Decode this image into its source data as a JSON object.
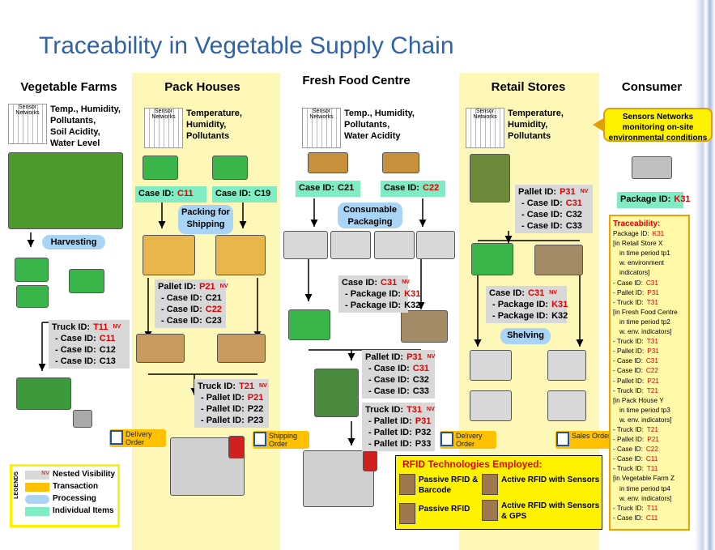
{
  "title": "Traceability in Vegetable Supply Chain",
  "columns": [
    "Vegetable Farms",
    "Pack Houses",
    "Fresh Food Centre",
    "Retail Stores",
    "Consumer"
  ],
  "sensors": [
    {
      "label": "Sensor Networks",
      "lines": [
        "Temp., Humidity,",
        "Pollutants,",
        "Soil Acidity,",
        "Water Level"
      ]
    },
    {
      "label": "Sensor Networks",
      "lines": [
        "Temperature,",
        "Humidity,",
        "Pollutants"
      ]
    },
    {
      "label": "Sensor Networks",
      "lines": [
        "Temp., Humidity,",
        "Pollutants,",
        "Water Acidity"
      ]
    },
    {
      "label": "Sensor Networks",
      "lines": [
        "Temperature,",
        "Humidity,",
        "Pollutants"
      ]
    }
  ],
  "case_tags": [
    {
      "label": "Case ID:",
      "id": "C11",
      "highlight": true
    },
    {
      "label": "Case ID:",
      "id": "C19",
      "highlight": false
    },
    {
      "label": "Case ID:",
      "id": "C21",
      "highlight": false
    },
    {
      "label": "Case ID:",
      "id": "C22",
      "highlight": true
    },
    {
      "label": "Package ID:",
      "id": "K31",
      "highlight": true
    }
  ],
  "processes": [
    "Harvesting",
    "Packing for Shipping",
    "Consumable Packaging",
    "Shelving"
  ],
  "manifests": [
    {
      "label": "Truck ID:",
      "id": "T11",
      "tag": "NV",
      "items": [
        {
          "label": "- Case ID:",
          "id": "C11",
          "highlight": true
        },
        {
          "label": "- Case ID:",
          "id": "C12",
          "highlight": false
        },
        {
          "label": "- Case ID:",
          "id": "C13",
          "highlight": false
        }
      ]
    },
    {
      "label": "Pallet ID:",
      "id": "P21",
      "tag": "NV",
      "items": [
        {
          "label": "- Case ID:",
          "id": "C21",
          "highlight": false
        },
        {
          "label": "- Case ID:",
          "id": "C22",
          "highlight": true
        },
        {
          "label": "- Case ID:",
          "id": "C23",
          "highlight": false
        }
      ]
    },
    {
      "label": "Truck ID:",
      "id": "T21",
      "tag": "NV",
      "items": [
        {
          "label": "- Pallet ID:",
          "id": "P21",
          "highlight": true
        },
        {
          "label": "- Pallet ID:",
          "id": "P22",
          "highlight": false
        },
        {
          "label": "- Pallet ID:",
          "id": "P23",
          "highlight": false
        }
      ]
    },
    {
      "label": "Case ID:",
      "id": "C31",
      "tag": "NV",
      "items": [
        {
          "label": "- Package ID:",
          "id": "K31",
          "highlight": true
        },
        {
          "label": "- Package ID:",
          "id": "K32",
          "highlight": false
        }
      ]
    },
    {
      "label": "Pallet ID:",
      "id": "P31",
      "tag": "NV",
      "items": [
        {
          "label": "- Case ID:",
          "id": "C31",
          "highlight": true
        },
        {
          "label": "- Case ID:",
          "id": "C32",
          "highlight": false
        },
        {
          "label": "- Case ID:",
          "id": "C33",
          "highlight": false
        }
      ]
    },
    {
      "label": "Truck ID:",
      "id": "T31",
      "tag": "NV",
      "items": [
        {
          "label": "- Pallet ID:",
          "id": "P31",
          "highlight": true
        },
        {
          "label": "- Pallet ID:",
          "id": "P32",
          "highlight": false
        },
        {
          "label": "- Pallet ID:",
          "id": "P33",
          "highlight": false
        }
      ]
    },
    {
      "label": "Pallet ID:",
      "id": "P31",
      "tag": "NV",
      "items": [
        {
          "label": "- Case ID:",
          "id": "C31",
          "highlight": true
        },
        {
          "label": "- Case ID:",
          "id": "C32",
          "highlight": false
        },
        {
          "label": "- Case ID:",
          "id": "C33",
          "highlight": false
        }
      ]
    },
    {
      "label": "Case ID:",
      "id": "C31",
      "tag": "NV",
      "items": [
        {
          "label": "- Package ID:",
          "id": "K31",
          "highlight": true
        },
        {
          "label": "- Package ID:",
          "id": "K32",
          "highlight": false
        }
      ]
    }
  ],
  "orders": [
    "Delivery Order",
    "Shipping Order",
    "Delivery Order",
    "Sales Order"
  ],
  "callout": "Sensors Networks monitoring on-site environmental conditions",
  "traceability": {
    "heading": "Traceability:",
    "lines": [
      {
        "label": "Package ID:",
        "id": "K31"
      },
      "[in Retail Store X",
      "in time period tp1",
      "w. environment",
      "indicators]",
      {
        "label": "- Case ID:",
        "id": "C31"
      },
      {
        "label": "- Pallet ID:",
        "id": "P31"
      },
      {
        "label": "- Truck ID:",
        "id": "T31"
      },
      "[in Fresh Food Centre",
      "in time period tp2",
      "w. env. indicators]",
      {
        "label": "- Truck ID:",
        "id": "T31"
      },
      {
        "label": "- Pallet ID:",
        "id": "P31"
      },
      {
        "label": "- Case ID:",
        "id": "C31"
      },
      {
        "label": "- Case ID:",
        "id": "C22"
      },
      {
        "label": "- Pallet ID:",
        "id": "P21"
      },
      {
        "label": "- Truck ID:",
        "id": "T21"
      },
      "[in Pack House Y",
      "in time period tp3",
      "w. env. indicators]",
      {
        "label": "- Truck ID:",
        "id": "T21"
      },
      {
        "label": "- Pallet ID:",
        "id": "P21"
      },
      {
        "label": "- Case ID:",
        "id": "C22"
      },
      {
        "label": "- Case ID:",
        "id": "C11"
      },
      {
        "label": "- Truck ID:",
        "id": "T11"
      },
      "[in Vegetable Farm Z",
      "in time period tp4",
      "w. env. indicators]",
      {
        "label": "- Truck ID:",
        "id": "T11"
      },
      {
        "label": "- Case ID:",
        "id": "C11"
      }
    ]
  },
  "legend": {
    "title": "LEGENDS",
    "symbol": "NV",
    "items": [
      "Nested Visibility",
      "Transaction",
      "Processing",
      "Individual Items"
    ]
  },
  "rfid": {
    "title": "RFID Technologies Employed:",
    "items": [
      "Passive RFID & Barcode",
      "Passive RFID",
      "Active RFID with Sensors",
      "Active RFID with Sensors & GPS"
    ]
  }
}
